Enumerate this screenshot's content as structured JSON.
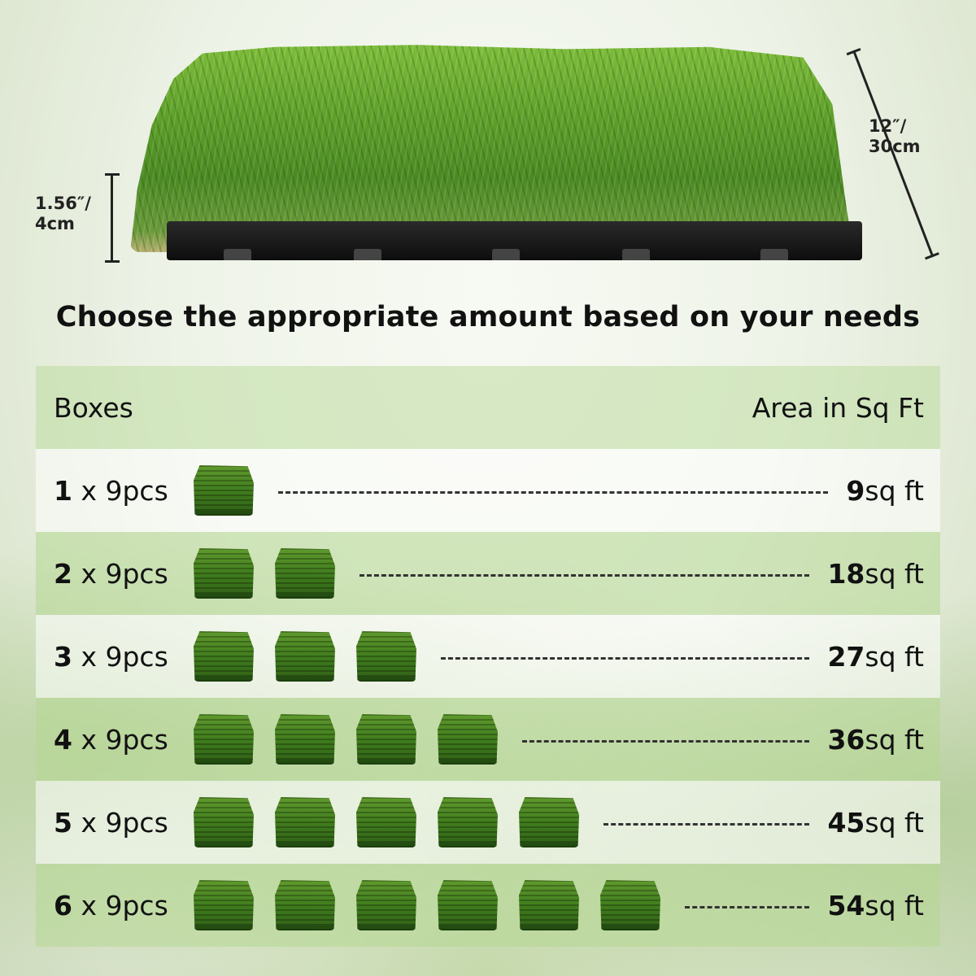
{
  "dimensions": {
    "height_line1": "1.56″/",
    "height_line2": "4cm",
    "width_line1": "12″/",
    "width_line2": "30cm"
  },
  "headline": "Choose the appropriate amount based on your needs",
  "table": {
    "header_left": "Boxes",
    "header_right": "Area in Sq Ft",
    "rows": [
      {
        "count": "1",
        "suffix": " x 9pcs",
        "boxes": 1,
        "area_value": "9",
        "area_unit": "sq ft"
      },
      {
        "count": "2",
        "suffix": " x 9pcs",
        "boxes": 2,
        "area_value": "18",
        "area_unit": "sq ft"
      },
      {
        "count": "3",
        "suffix": " x 9pcs",
        "boxes": 3,
        "area_value": "27",
        "area_unit": "sq ft"
      },
      {
        "count": "4",
        "suffix": " x 9pcs",
        "boxes": 4,
        "area_value": "36",
        "area_unit": "sq ft"
      },
      {
        "count": "5",
        "suffix": " x 9pcs",
        "boxes": 5,
        "area_value": "45",
        "area_unit": "sq ft"
      },
      {
        "count": "6",
        "suffix": " x 9pcs",
        "boxes": 6,
        "area_value": "54",
        "area_unit": "sq ft"
      }
    ]
  },
  "colors": {
    "turf": "#5fa12a",
    "header_band": "#bedca0",
    "text": "#111111"
  }
}
